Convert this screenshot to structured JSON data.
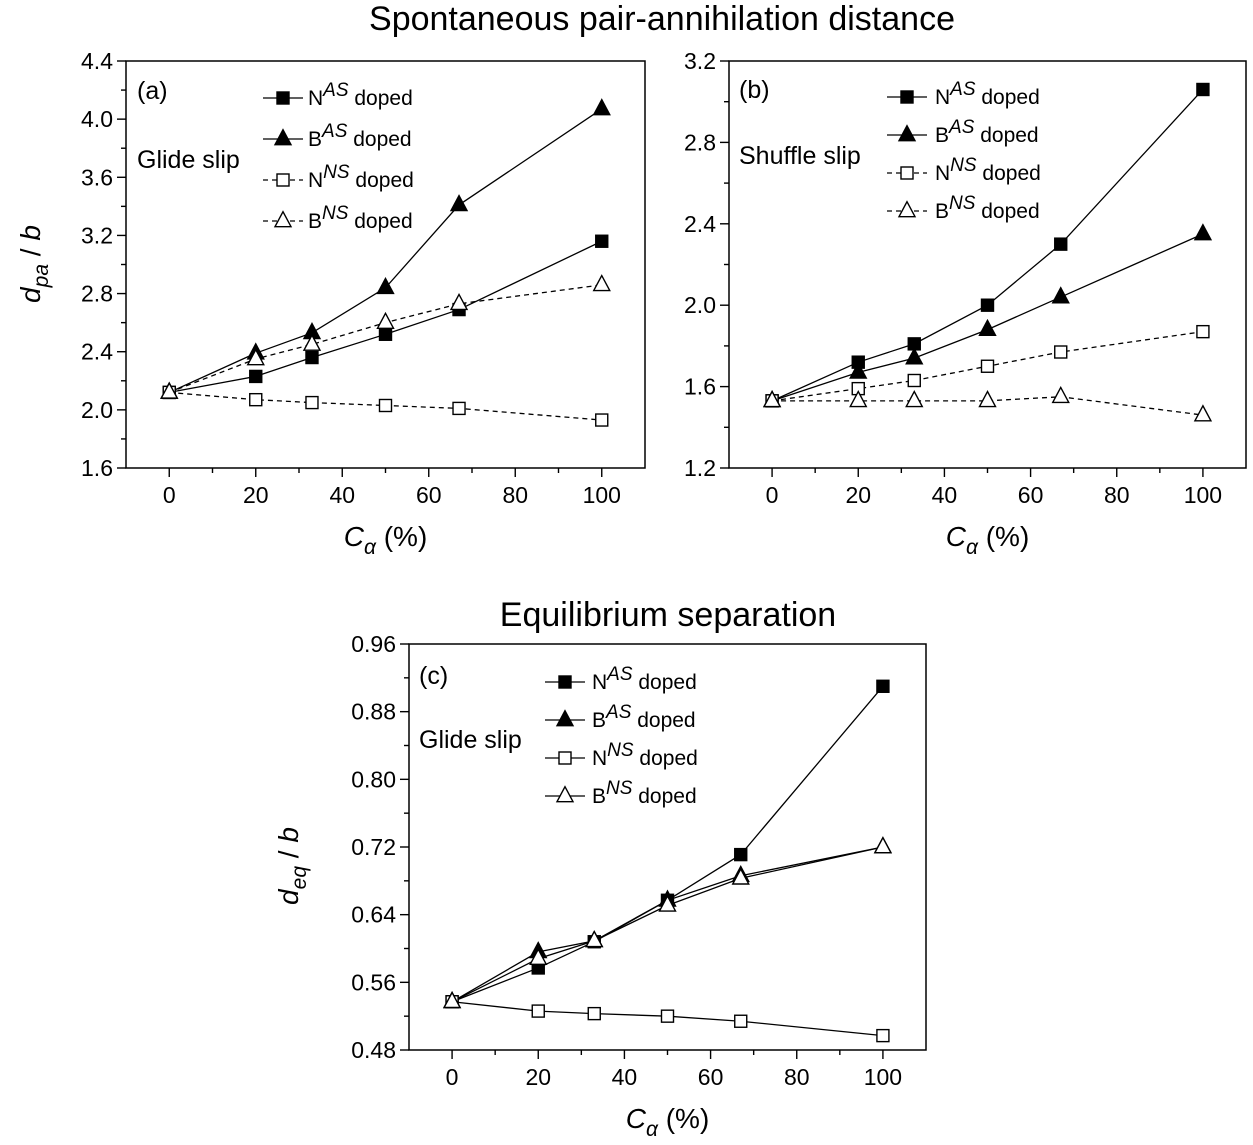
{
  "titles": {
    "top": "Spontaneous pair-annihilation distance",
    "bottom": "Equilibrium separation"
  },
  "chart_data": [
    {
      "type": "line",
      "panel": "(a)",
      "annotation": "Glide slip",
      "xlabel": {
        "main": "C",
        "sub": "α",
        "unit": " (%)"
      },
      "ylabel": {
        "main": "d",
        "sub": "pa",
        "unit": " / b"
      },
      "xlim": [
        -10,
        110
      ],
      "ylim": [
        1.6,
        4.4
      ],
      "xticks": [
        0,
        20,
        40,
        60,
        80,
        100
      ],
      "yticks": [
        1.6,
        2.0,
        2.4,
        2.8,
        3.2,
        3.6,
        4.0,
        4.4
      ],
      "y_decimals": 1,
      "grid": false,
      "legend_position": "top",
      "x": [
        0,
        20,
        33,
        50,
        67,
        100
      ],
      "series": [
        {
          "name": "N",
          "sup": "AS",
          "suffix": " doped",
          "marker": "square",
          "filled": true,
          "dashed": false,
          "values": [
            2.12,
            2.23,
            2.36,
            2.52,
            2.69,
            3.16
          ]
        },
        {
          "name": "B",
          "sup": "AS",
          "suffix": " doped",
          "marker": "triangle",
          "filled": true,
          "dashed": false,
          "values": [
            2.12,
            2.39,
            2.53,
            2.84,
            3.41,
            4.07
          ]
        },
        {
          "name": "N",
          "sup": "NS",
          "suffix": " doped",
          "marker": "square",
          "filled": false,
          "dashed": true,
          "values": [
            2.12,
            2.07,
            2.05,
            2.03,
            2.01,
            1.93
          ]
        },
        {
          "name": "B",
          "sup": "NS",
          "suffix": " doped",
          "marker": "triangle",
          "filled": false,
          "dashed": true,
          "values": [
            2.12,
            2.35,
            2.45,
            2.6,
            2.73,
            2.86
          ]
        }
      ]
    },
    {
      "type": "line",
      "panel": "(b)",
      "annotation": "Shuffle slip",
      "xlabel": {
        "main": "C",
        "sub": "α",
        "unit": " (%)"
      },
      "ylabel": {
        "main": "",
        "sub": "",
        "unit": ""
      },
      "xlim": [
        -10,
        110
      ],
      "ylim": [
        1.2,
        3.2
      ],
      "xticks": [
        0,
        20,
        40,
        60,
        80,
        100
      ],
      "yticks": [
        1.2,
        1.6,
        2.0,
        2.4,
        2.8,
        3.2
      ],
      "y_decimals": 1,
      "grid": false,
      "legend_position": "top",
      "x": [
        0,
        20,
        33,
        50,
        67,
        100
      ],
      "series": [
        {
          "name": "N",
          "sup": "AS",
          "suffix": " doped",
          "marker": "square",
          "filled": true,
          "dashed": false,
          "values": [
            1.53,
            1.72,
            1.81,
            2.0,
            2.3,
            3.06
          ]
        },
        {
          "name": "B",
          "sup": "AS",
          "suffix": " doped",
          "marker": "triangle",
          "filled": true,
          "dashed": false,
          "values": [
            1.53,
            1.67,
            1.74,
            1.88,
            2.04,
            2.35
          ]
        },
        {
          "name": "N",
          "sup": "NS",
          "suffix": " doped",
          "marker": "square",
          "filled": false,
          "dashed": true,
          "values": [
            1.53,
            1.59,
            1.63,
            1.7,
            1.77,
            1.87
          ]
        },
        {
          "name": "B",
          "sup": "NS",
          "suffix": " doped",
          "marker": "triangle",
          "filled": false,
          "dashed": true,
          "values": [
            1.53,
            1.53,
            1.53,
            1.53,
            1.55,
            1.46
          ]
        }
      ]
    },
    {
      "type": "line",
      "panel": "(c)",
      "annotation": "Glide slip",
      "xlabel": {
        "main": "C",
        "sub": "α",
        "unit": " (%)"
      },
      "ylabel": {
        "main": "d",
        "sub": "eq",
        "unit": " / b"
      },
      "xlim": [
        -10,
        110
      ],
      "ylim": [
        0.48,
        0.96
      ],
      "xticks": [
        0,
        20,
        40,
        60,
        80,
        100
      ],
      "yticks": [
        0.48,
        0.56,
        0.64,
        0.72,
        0.8,
        0.88,
        0.96
      ],
      "y_decimals": 2,
      "grid": false,
      "legend_position": "top",
      "x": [
        0,
        20,
        33,
        50,
        67,
        100
      ],
      "series": [
        {
          "name": "N",
          "sup": "AS",
          "suffix": " doped",
          "marker": "square",
          "filled": true,
          "dashed": false,
          "values": [
            0.537,
            0.577,
            0.608,
            0.657,
            0.711,
            0.91
          ]
        },
        {
          "name": "B",
          "sup": "AS",
          "suffix": " doped",
          "marker": "triangle",
          "filled": true,
          "dashed": false,
          "values": [
            0.537,
            0.596,
            0.609,
            0.657,
            0.686,
            0.72
          ]
        },
        {
          "name": "N",
          "sup": "NS",
          "suffix": " doped",
          "marker": "square",
          "filled": false,
          "dashed": false,
          "values": [
            0.537,
            0.526,
            0.523,
            0.52,
            0.514,
            0.497
          ]
        },
        {
          "name": "B",
          "sup": "NS",
          "suffix": " doped",
          "marker": "triangle",
          "filled": false,
          "dashed": false,
          "values": [
            0.537,
            0.588,
            0.609,
            0.651,
            0.683,
            0.72
          ]
        }
      ]
    }
  ]
}
